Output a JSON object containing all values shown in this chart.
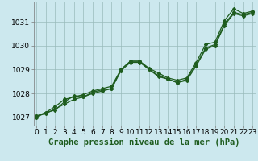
{
  "title": "Graphe pression niveau de la mer (hPa)",
  "x": [
    0,
    1,
    2,
    3,
    4,
    5,
    6,
    7,
    8,
    9,
    10,
    11,
    12,
    13,
    14,
    15,
    16,
    17,
    18,
    19,
    20,
    21,
    22,
    23
  ],
  "line1": [
    1027.0,
    1027.2,
    1027.3,
    1027.65,
    1027.9,
    1027.85,
    1028.05,
    1028.15,
    1028.2,
    1029.0,
    1029.35,
    1029.35,
    1029.05,
    1028.85,
    1028.65,
    1028.55,
    1028.65,
    1029.3,
    1030.05,
    1030.15,
    1031.05,
    1031.55,
    1031.35,
    1031.45
  ],
  "line2": [
    1027.05,
    1027.2,
    1027.45,
    1027.75,
    1027.85,
    1027.95,
    1028.1,
    1028.2,
    1028.3,
    1029.0,
    1029.35,
    1029.35,
    1029.0,
    1028.75,
    1028.6,
    1028.45,
    1028.6,
    1029.2,
    1029.9,
    1030.05,
    1030.9,
    1031.4,
    1031.3,
    1031.4
  ],
  "line3": [
    1027.05,
    1027.15,
    1027.35,
    1027.55,
    1027.75,
    1027.85,
    1028.0,
    1028.1,
    1028.2,
    1028.95,
    1029.3,
    1029.3,
    1029.0,
    1028.7,
    1028.6,
    1028.45,
    1028.55,
    1029.15,
    1029.85,
    1030.0,
    1030.85,
    1031.35,
    1031.25,
    1031.35
  ],
  "line_color": "#1e5c1e",
  "bg_color": "#cce8ee",
  "grid_color": "#99bbbb",
  "ylim": [
    1026.65,
    1031.85
  ],
  "yticks": [
    1027,
    1028,
    1029,
    1030,
    1031
  ],
  "xlim": [
    -0.3,
    23.3
  ],
  "xticks": [
    0,
    1,
    2,
    3,
    4,
    5,
    6,
    7,
    8,
    9,
    10,
    11,
    12,
    13,
    14,
    15,
    16,
    17,
    18,
    19,
    20,
    21,
    22,
    23
  ],
  "tick_fontsize": 6.5,
  "title_fontsize": 7.5,
  "marker": "D",
  "marker_size": 2.0,
  "linewidth": 0.9
}
